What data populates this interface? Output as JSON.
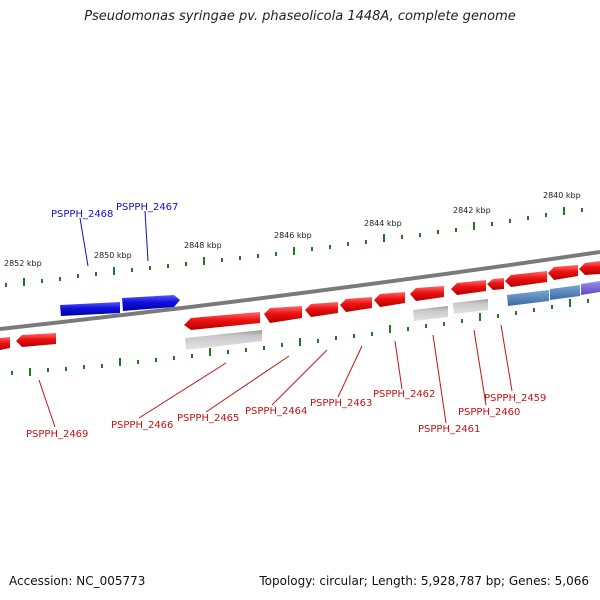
{
  "title": "Pseudomonas syringae pv. phaseolicola 1448A, complete genome",
  "footer": {
    "accession": "Accession: NC_005773",
    "summary": "Topology: circular; Length: 5,928,787 bp; Genes: 5,066"
  },
  "colors": {
    "backbone": "#7a7a7a",
    "tick": "#1e7a1e",
    "forward_gene": "#1010dd",
    "reverse_gene": "#ee1111",
    "gray_feature": "#bbbbbb",
    "steel_feature": "#4a7fb5",
    "purple_feature": "#7060d0",
    "forward_label": "#1010cc",
    "reverse_label": "#cc1111"
  },
  "ruler_labels": [
    "2840 kbp",
    "2842 kbp",
    "2844 kbp",
    "2846 kbp",
    "2848 kbp",
    "2850 kbp",
    "2852 kbp"
  ],
  "genes": [
    {
      "locus": "PSPPH_2459",
      "strand": "reverse"
    },
    {
      "locus": "PSPPH_2460",
      "strand": "reverse"
    },
    {
      "locus": "PSPPH_2461",
      "strand": "reverse"
    },
    {
      "locus": "PSPPH_2462",
      "strand": "reverse"
    },
    {
      "locus": "PSPPH_2463",
      "strand": "reverse"
    },
    {
      "locus": "PSPPH_2464",
      "strand": "reverse"
    },
    {
      "locus": "PSPPH_2465",
      "strand": "reverse"
    },
    {
      "locus": "PSPPH_2466",
      "strand": "reverse"
    },
    {
      "locus": "PSPPH_2467",
      "strand": "forward"
    },
    {
      "locus": "PSPPH_2468",
      "strand": "forward"
    },
    {
      "locus": "PSPPH_2469",
      "strand": "reverse"
    }
  ]
}
